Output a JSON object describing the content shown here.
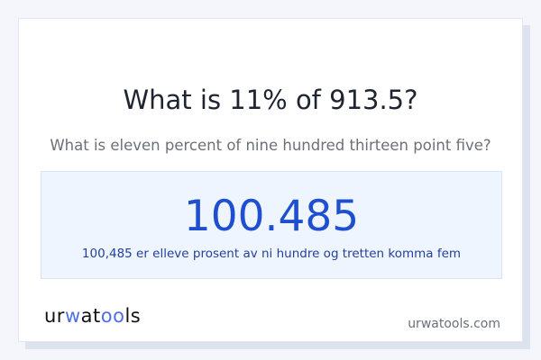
{
  "question": {
    "title": "What is 11% of 913.5?",
    "subtitle": "What is eleven percent of nine hundred thirteen point five?"
  },
  "result": {
    "value": "100.485",
    "words": "100,485 er elleve prosent av ni hundre og tretten komma fem"
  },
  "footer": {
    "logo": {
      "part1": "ur",
      "part2": "w",
      "part3": "at",
      "part4": "oo",
      "part5": "ls"
    },
    "site": "urwatools.com"
  },
  "colors": {
    "accent": "#1f4fd1",
    "result_bg": "#eef5ff",
    "logo_accent": "#4d6ee6"
  }
}
